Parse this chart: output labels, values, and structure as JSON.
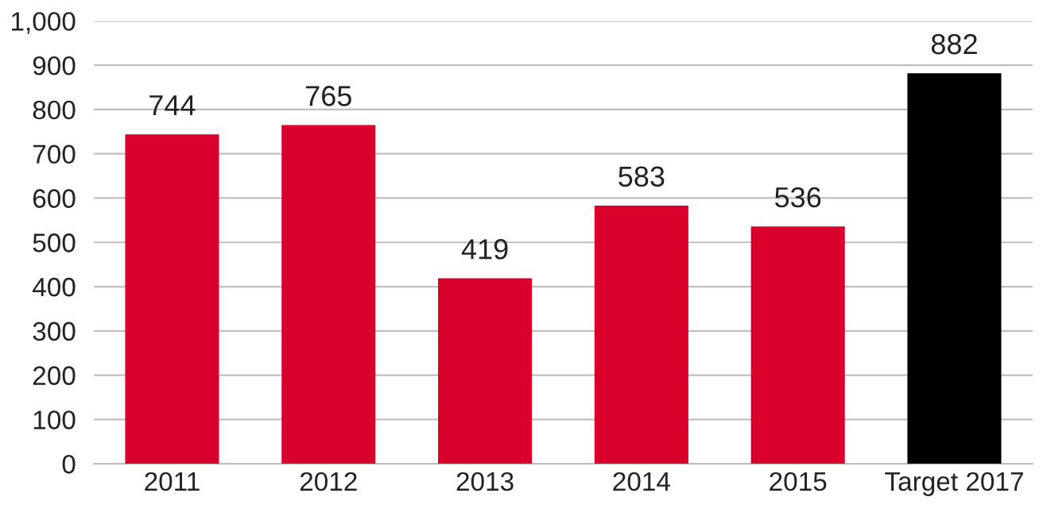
{
  "chart_data": {
    "type": "bar",
    "categories": [
      "2011",
      "2012",
      "2013",
      "2014",
      "2015",
      "Target 2017"
    ],
    "values": [
      744,
      765,
      419,
      583,
      536,
      882
    ],
    "colors": [
      "#d9002b",
      "#d9002b",
      "#d9002b",
      "#d9002b",
      "#d9002b",
      "#000000"
    ],
    "ylim": [
      0,
      1000
    ],
    "yticks": [
      0,
      100,
      200,
      300,
      400,
      500,
      600,
      700,
      800,
      900,
      {
        "value": 1000,
        "label": "1,000"
      }
    ],
    "grid": "y",
    "data_labels": true
  }
}
